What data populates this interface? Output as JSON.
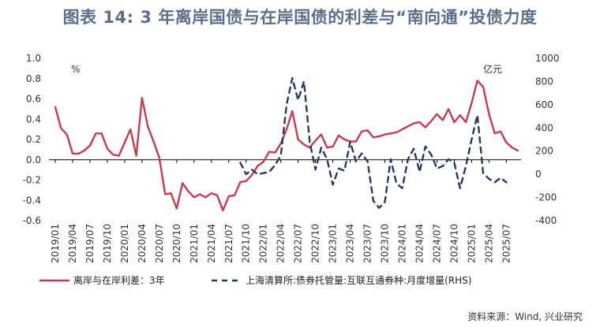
{
  "title": "图表 14: 3 年离岸国债与在岸国债的利差与“南向通”投债力度",
  "source": "资料来源：Wind, 兴业研究",
  "chart_data": {
    "type": "line",
    "left_unit": "%",
    "right_unit": "亿元",
    "ylim_left": [
      -0.6,
      1.0
    ],
    "ylim_right": [
      -400,
      1000
    ],
    "left_ticks": [
      "1.0",
      "0.8",
      "0.6",
      "0.4",
      "0.2",
      "0.0",
      "-0.2",
      "-0.4",
      "-0.6"
    ],
    "right_ticks": [
      "1000",
      "800",
      "600",
      "400",
      "200",
      "0",
      "-200",
      "-400"
    ],
    "x_labels": [
      "2019/01",
      "2019/04",
      "2019/07",
      "2019/10",
      "2020/01",
      "2020/04",
      "2020/07",
      "2020/10",
      "2021/01",
      "2021/04",
      "2021/07",
      "2021/10",
      "2022/01",
      "2022/04",
      "2022/07",
      "2022/10",
      "2023/01",
      "2023/04",
      "2023/07",
      "2023/10",
      "2024/01",
      "2024/04",
      "2024/07",
      "2024/10",
      "2025/01",
      "2025/04",
      "2025/07"
    ],
    "series": [
      {
        "name": "离岸与在岸利差：3年",
        "axis": "left",
        "color": "#c93a4e",
        "style": "solid",
        "values": [
          0.52,
          0.31,
          0.25,
          0.06,
          0.06,
          0.09,
          0.14,
          0.26,
          0.26,
          0.11,
          0.05,
          0.04,
          0.17,
          0.3,
          0.04,
          0.61,
          0.33,
          0.18,
          0.02,
          -0.34,
          -0.33,
          -0.48,
          -0.23,
          -0.31,
          -0.37,
          -0.34,
          -0.37,
          -0.33,
          -0.35,
          -0.5,
          -0.36,
          -0.35,
          -0.22,
          -0.21,
          -0.15,
          -0.06,
          -0.02,
          0.08,
          0.07,
          0.16,
          0.3,
          0.48,
          0.2,
          0.15,
          0.12,
          0.19,
          0.25,
          0.12,
          0.13,
          0.24,
          0.2,
          0.18,
          0.18,
          0.28,
          0.29,
          0.22,
          0.23,
          0.25,
          0.26,
          0.27,
          0.3,
          0.33,
          0.36,
          0.37,
          0.32,
          0.38,
          0.45,
          0.39,
          0.5,
          0.37,
          0.44,
          0.37,
          0.56,
          0.78,
          0.72,
          0.45,
          0.26,
          0.28,
          0.17,
          0.12,
          0.09
        ]
      },
      {
        "name": "上海清算所:债券托管量:互联互通券种:月度增量(RHS)",
        "axis": "right",
        "color": "#253a5e",
        "style": "dashed",
        "start_index": 32,
        "values": [
          100,
          0,
          40,
          0,
          10,
          20,
          80,
          160,
          600,
          830,
          640,
          800,
          280,
          40,
          230,
          130,
          -90,
          50,
          30,
          280,
          110,
          180,
          110,
          -230,
          -290,
          -240,
          130,
          -80,
          -120,
          130,
          220,
          20,
          240,
          170,
          50,
          70,
          130,
          100,
          -120,
          70,
          300,
          510,
          10,
          -40,
          -70,
          -30,
          -70
        ]
      }
    ]
  }
}
